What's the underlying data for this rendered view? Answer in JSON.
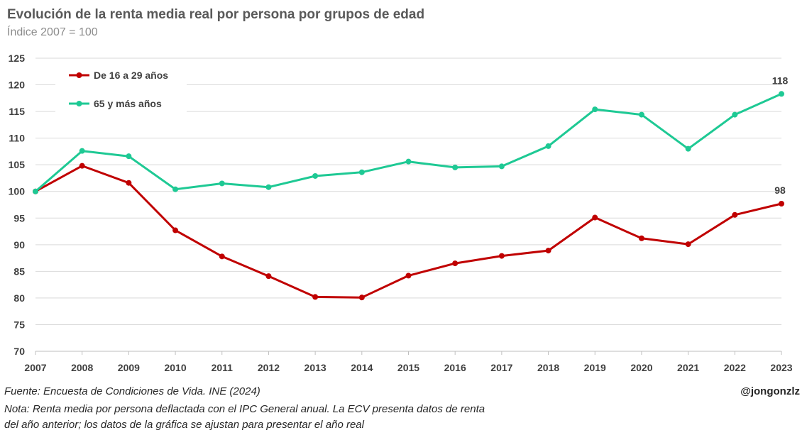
{
  "header": {
    "title": "Evolución de la renta media real por persona por grupos de edad",
    "subtitle": "Índice 2007 = 100"
  },
  "footer": {
    "source": "Fuente: Encuesta de Condiciones de Vida. INE (2024)",
    "note": "Nota: Renta media por persona deflactada con el IPC General anual. La ECV presenta datos de renta del año anterior; los datos de la gráfica se ajustan para presentar el año real",
    "handle": "@jongonzlz"
  },
  "chart_data": {
    "type": "line",
    "x": [
      "2007",
      "2008",
      "2009",
      "2010",
      "2011",
      "2012",
      "2013",
      "2014",
      "2015",
      "2016",
      "2017",
      "2018",
      "2019",
      "2020",
      "2021",
      "2022",
      "2023"
    ],
    "ylim": [
      70,
      125
    ],
    "yticks": [
      70,
      75,
      80,
      85,
      90,
      95,
      100,
      105,
      110,
      115,
      120,
      125
    ],
    "grid": true,
    "legend_position": "top-left",
    "series": [
      {
        "name": "De 16 a 29 años",
        "color": "#c00000",
        "values": [
          100,
          104.8,
          101.6,
          92.7,
          87.8,
          84.1,
          80.2,
          80.1,
          84.2,
          86.5,
          87.9,
          88.9,
          95.1,
          91.2,
          90.1,
          95.6,
          97.7
        ],
        "end_label": "98"
      },
      {
        "name": "65 y más años",
        "color": "#1ec994",
        "values": [
          100,
          107.6,
          106.6,
          100.4,
          101.5,
          100.8,
          102.9,
          103.6,
          105.6,
          104.5,
          104.7,
          108.5,
          115.4,
          114.4,
          108.0,
          114.4,
          118.3
        ],
        "end_label": "118"
      }
    ]
  }
}
